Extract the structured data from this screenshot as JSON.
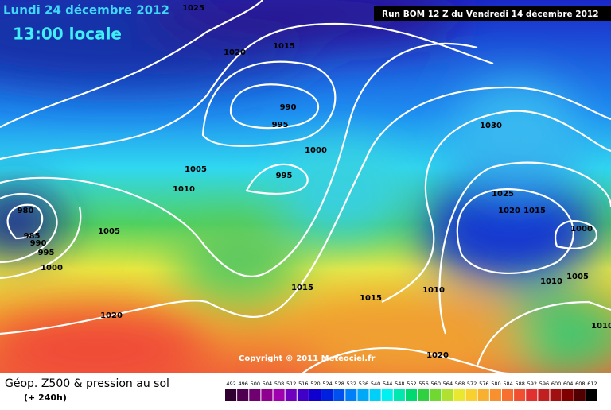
{
  "header": {
    "date": "Lundi 24 décembre 2012",
    "time": "13:00 locale",
    "run": "Run BOM 12 Z du Vendredi 14 décembre 2012"
  },
  "isobar_labels": [
    1025,
    1020,
    1015,
    990,
    995,
    1000,
    1005,
    995,
    1010,
    980,
    985,
    990,
    995,
    1000,
    1005,
    1020,
    1015,
    1015,
    1010,
    1030,
    1025,
    1020,
    1015,
    1000,
    1010,
    1005,
    1010,
    1020
  ],
  "copyright": "Copyright © 2011 Meteociel.fr",
  "legend": {
    "title": "Géop. Z500 & pression au sol",
    "subtitle": "(+ 240h)",
    "levels": [
      492,
      496,
      500,
      504,
      508,
      512,
      516,
      520,
      524,
      528,
      532,
      536,
      540,
      544,
      548,
      552,
      556,
      560,
      564,
      568,
      572,
      576,
      580,
      584,
      588,
      592,
      596,
      600,
      604,
      608,
      612
    ]
  }
}
